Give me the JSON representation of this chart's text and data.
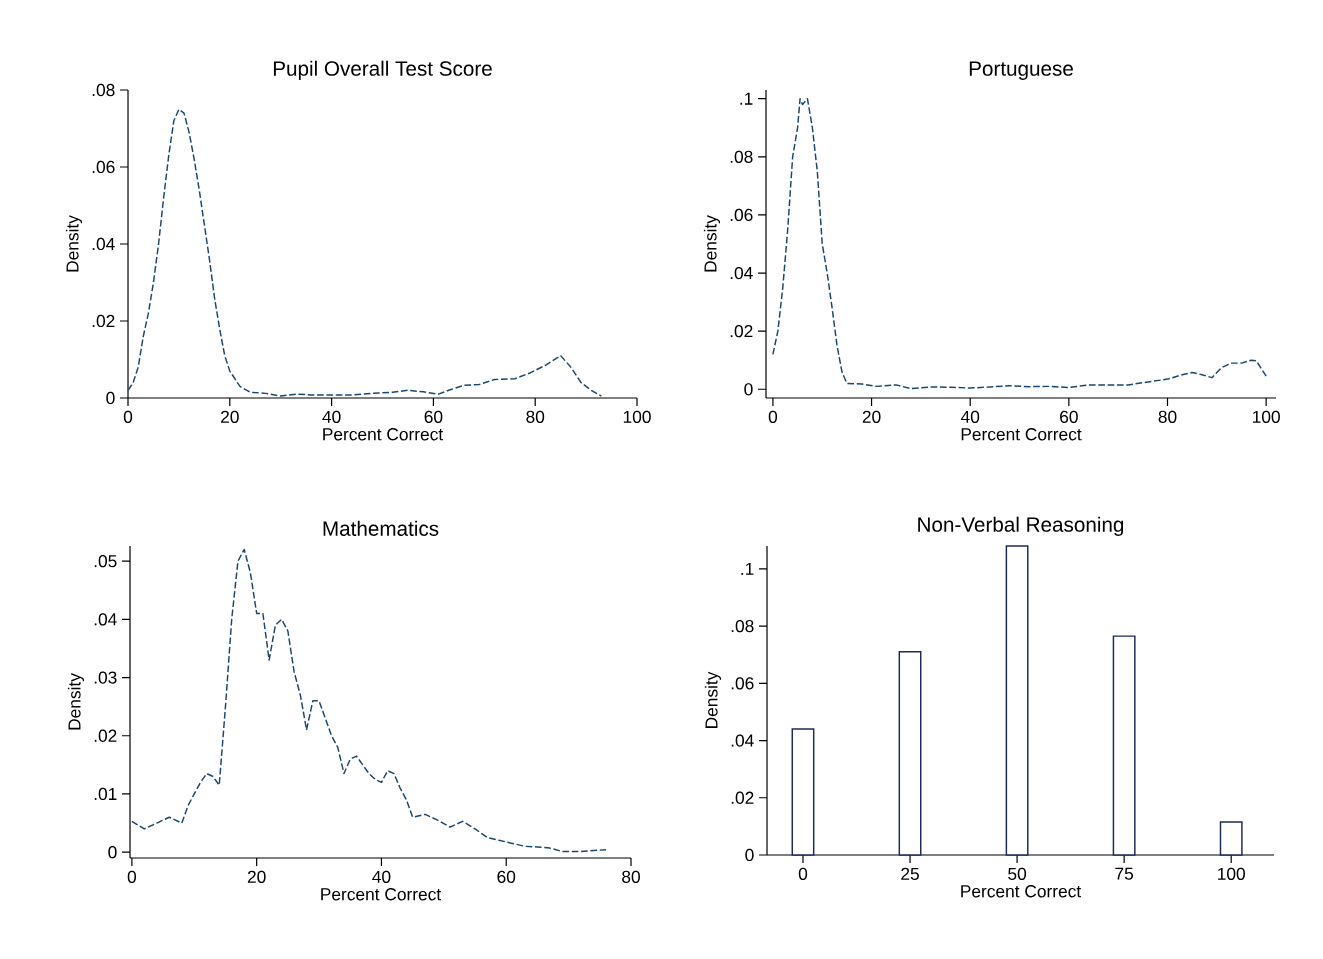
{
  "chart_data": [
    {
      "type": "line",
      "title": "Pupil Overall Test Score",
      "xlabel": "Percent Correct",
      "ylabel": "Density",
      "line_style": "dashed",
      "color": "#1a476f",
      "x": [
        0,
        1,
        2,
        3,
        4,
        5,
        6,
        7,
        8,
        9,
        10,
        11,
        12,
        13,
        14,
        15,
        16,
        17,
        18,
        19,
        20,
        21,
        22,
        24,
        27,
        30,
        33,
        36,
        40,
        44,
        48,
        52,
        55,
        58,
        61,
        63,
        66,
        69,
        72,
        76,
        79,
        82,
        85,
        87,
        89,
        91,
        93
      ],
      "values": [
        0.002,
        0.004,
        0.008,
        0.016,
        0.022,
        0.03,
        0.04,
        0.052,
        0.063,
        0.072,
        0.075,
        0.074,
        0.069,
        0.062,
        0.054,
        0.045,
        0.036,
        0.026,
        0.018,
        0.011,
        0.007,
        0.005,
        0.003,
        0.0015,
        0.0012,
        0.0005,
        0.001,
        0.0008,
        0.0008,
        0.0008,
        0.0012,
        0.0015,
        0.002,
        0.0016,
        0.001,
        0.002,
        0.0033,
        0.0035,
        0.0048,
        0.005,
        0.0065,
        0.0085,
        0.011,
        0.008,
        0.004,
        0.002,
        0.0005
      ],
      "xlim": [
        0,
        100
      ],
      "ylim": [
        0,
        0.08
      ],
      "xticks": [
        0,
        20,
        40,
        60,
        80,
        100
      ],
      "yticks": [
        0,
        {
          "value": 0.02,
          "label": ".02"
        },
        {
          "value": 0.04,
          "label": ".04"
        },
        {
          "value": 0.06,
          "label": ".06"
        },
        {
          "value": 0.08,
          "label": ".08"
        }
      ]
    },
    {
      "type": "line",
      "title": "Portuguese",
      "xlabel": "Percent Correct",
      "ylabel": "Density",
      "line_style": "dashed",
      "color": "#1a476f",
      "x": [
        0,
        1,
        2,
        3,
        4,
        5,
        5.5,
        6,
        7,
        8,
        9,
        10,
        11,
        12,
        13,
        14,
        15,
        18,
        21,
        25,
        28,
        32,
        36,
        40,
        44,
        48,
        52,
        56,
        60,
        64,
        68,
        72,
        76,
        80,
        83,
        85,
        87,
        89,
        91,
        93,
        95,
        97,
        98,
        100
      ],
      "values": [
        0.012,
        0.02,
        0.035,
        0.055,
        0.08,
        0.09,
        0.1,
        0.098,
        0.1,
        0.09,
        0.075,
        0.05,
        0.04,
        0.028,
        0.015,
        0.006,
        0.002,
        0.0018,
        0.001,
        0.0015,
        0.0002,
        0.0008,
        0.0007,
        0.0004,
        0.0008,
        0.0012,
        0.0009,
        0.001,
        0.0006,
        0.0015,
        0.0015,
        0.0015,
        0.0025,
        0.0035,
        0.005,
        0.0058,
        0.005,
        0.004,
        0.0075,
        0.009,
        0.009,
        0.01,
        0.0098,
        0.0045
      ],
      "xlim": [
        -1.4,
        102
      ],
      "ylim": [
        -0.003,
        0.103
      ],
      "xticks": [
        0,
        20,
        40,
        60,
        80,
        100
      ],
      "yticks": [
        0,
        {
          "value": 0.02,
          "label": ".02"
        },
        {
          "value": 0.04,
          "label": ".04"
        },
        {
          "value": 0.06,
          "label": ".06"
        },
        {
          "value": 0.08,
          "label": ".08"
        },
        {
          "value": 0.1,
          "label": ".1"
        }
      ]
    },
    {
      "type": "line",
      "title": "Mathematics",
      "xlabel": "Percent Correct",
      "ylabel": "Density",
      "line_style": "dashed",
      "color": "#1a476f",
      "x": [
        0,
        2,
        4,
        6,
        8,
        9,
        10,
        11,
        12,
        13,
        14,
        15,
        16,
        17,
        18,
        19,
        20,
        21,
        22,
        23,
        24,
        25,
        26,
        27,
        28,
        29,
        30,
        31,
        32,
        33,
        34,
        35,
        36,
        37,
        38,
        39,
        40,
        41,
        42,
        43,
        44,
        45,
        47,
        49,
        51,
        53,
        55,
        57,
        59,
        61,
        63,
        65,
        67,
        69,
        72,
        74,
        76
      ],
      "values": [
        0.0053,
        0.004,
        0.005,
        0.006,
        0.005,
        0.008,
        0.01,
        0.012,
        0.0135,
        0.013,
        0.0115,
        0.025,
        0.04,
        0.05,
        0.052,
        0.048,
        0.041,
        0.041,
        0.033,
        0.039,
        0.04,
        0.038,
        0.031,
        0.027,
        0.021,
        0.026,
        0.026,
        0.023,
        0.02,
        0.018,
        0.0135,
        0.016,
        0.0165,
        0.015,
        0.0135,
        0.0125,
        0.012,
        0.014,
        0.0135,
        0.011,
        0.009,
        0.006,
        0.0065,
        0.0055,
        0.0043,
        0.0053,
        0.004,
        0.0025,
        0.002,
        0.0015,
        0.001,
        0.0009,
        0.0007,
        0.0001,
        0.0001,
        0.0003,
        0.0004
      ],
      "xlim": [
        -0.3,
        80
      ],
      "ylim": [
        -0.001,
        0.0526
      ],
      "xticks": [
        0,
        20,
        40,
        60,
        80
      ],
      "yticks": [
        0,
        {
          "value": 0.01,
          "label": ".01"
        },
        {
          "value": 0.02,
          "label": ".02"
        },
        {
          "value": 0.03,
          "label": ".03"
        },
        {
          "value": 0.04,
          "label": ".04"
        },
        {
          "value": 0.05,
          "label": ".05"
        }
      ]
    },
    {
      "type": "bar",
      "title": "Non-Verbal Reasoning",
      "xlabel": "Percent Correct",
      "ylabel": "Density",
      "color": "#1c2a5a",
      "x": [
        0,
        25,
        50,
        75,
        100
      ],
      "values": [
        0.044,
        0.071,
        0.108,
        0.0765,
        0.0115
      ],
      "xlim": [
        -8.4,
        110
      ],
      "ylim": [
        0,
        0.108
      ],
      "xticks": [
        0,
        25,
        50,
        75,
        100
      ],
      "yticks": [
        0,
        {
          "value": 0.02,
          "label": ".02"
        },
        {
          "value": 0.04,
          "label": ".04"
        },
        {
          "value": 0.06,
          "label": ".06"
        },
        {
          "value": 0.08,
          "label": ".08"
        },
        {
          "value": 0.1,
          "label": ".1"
        }
      ]
    }
  ]
}
